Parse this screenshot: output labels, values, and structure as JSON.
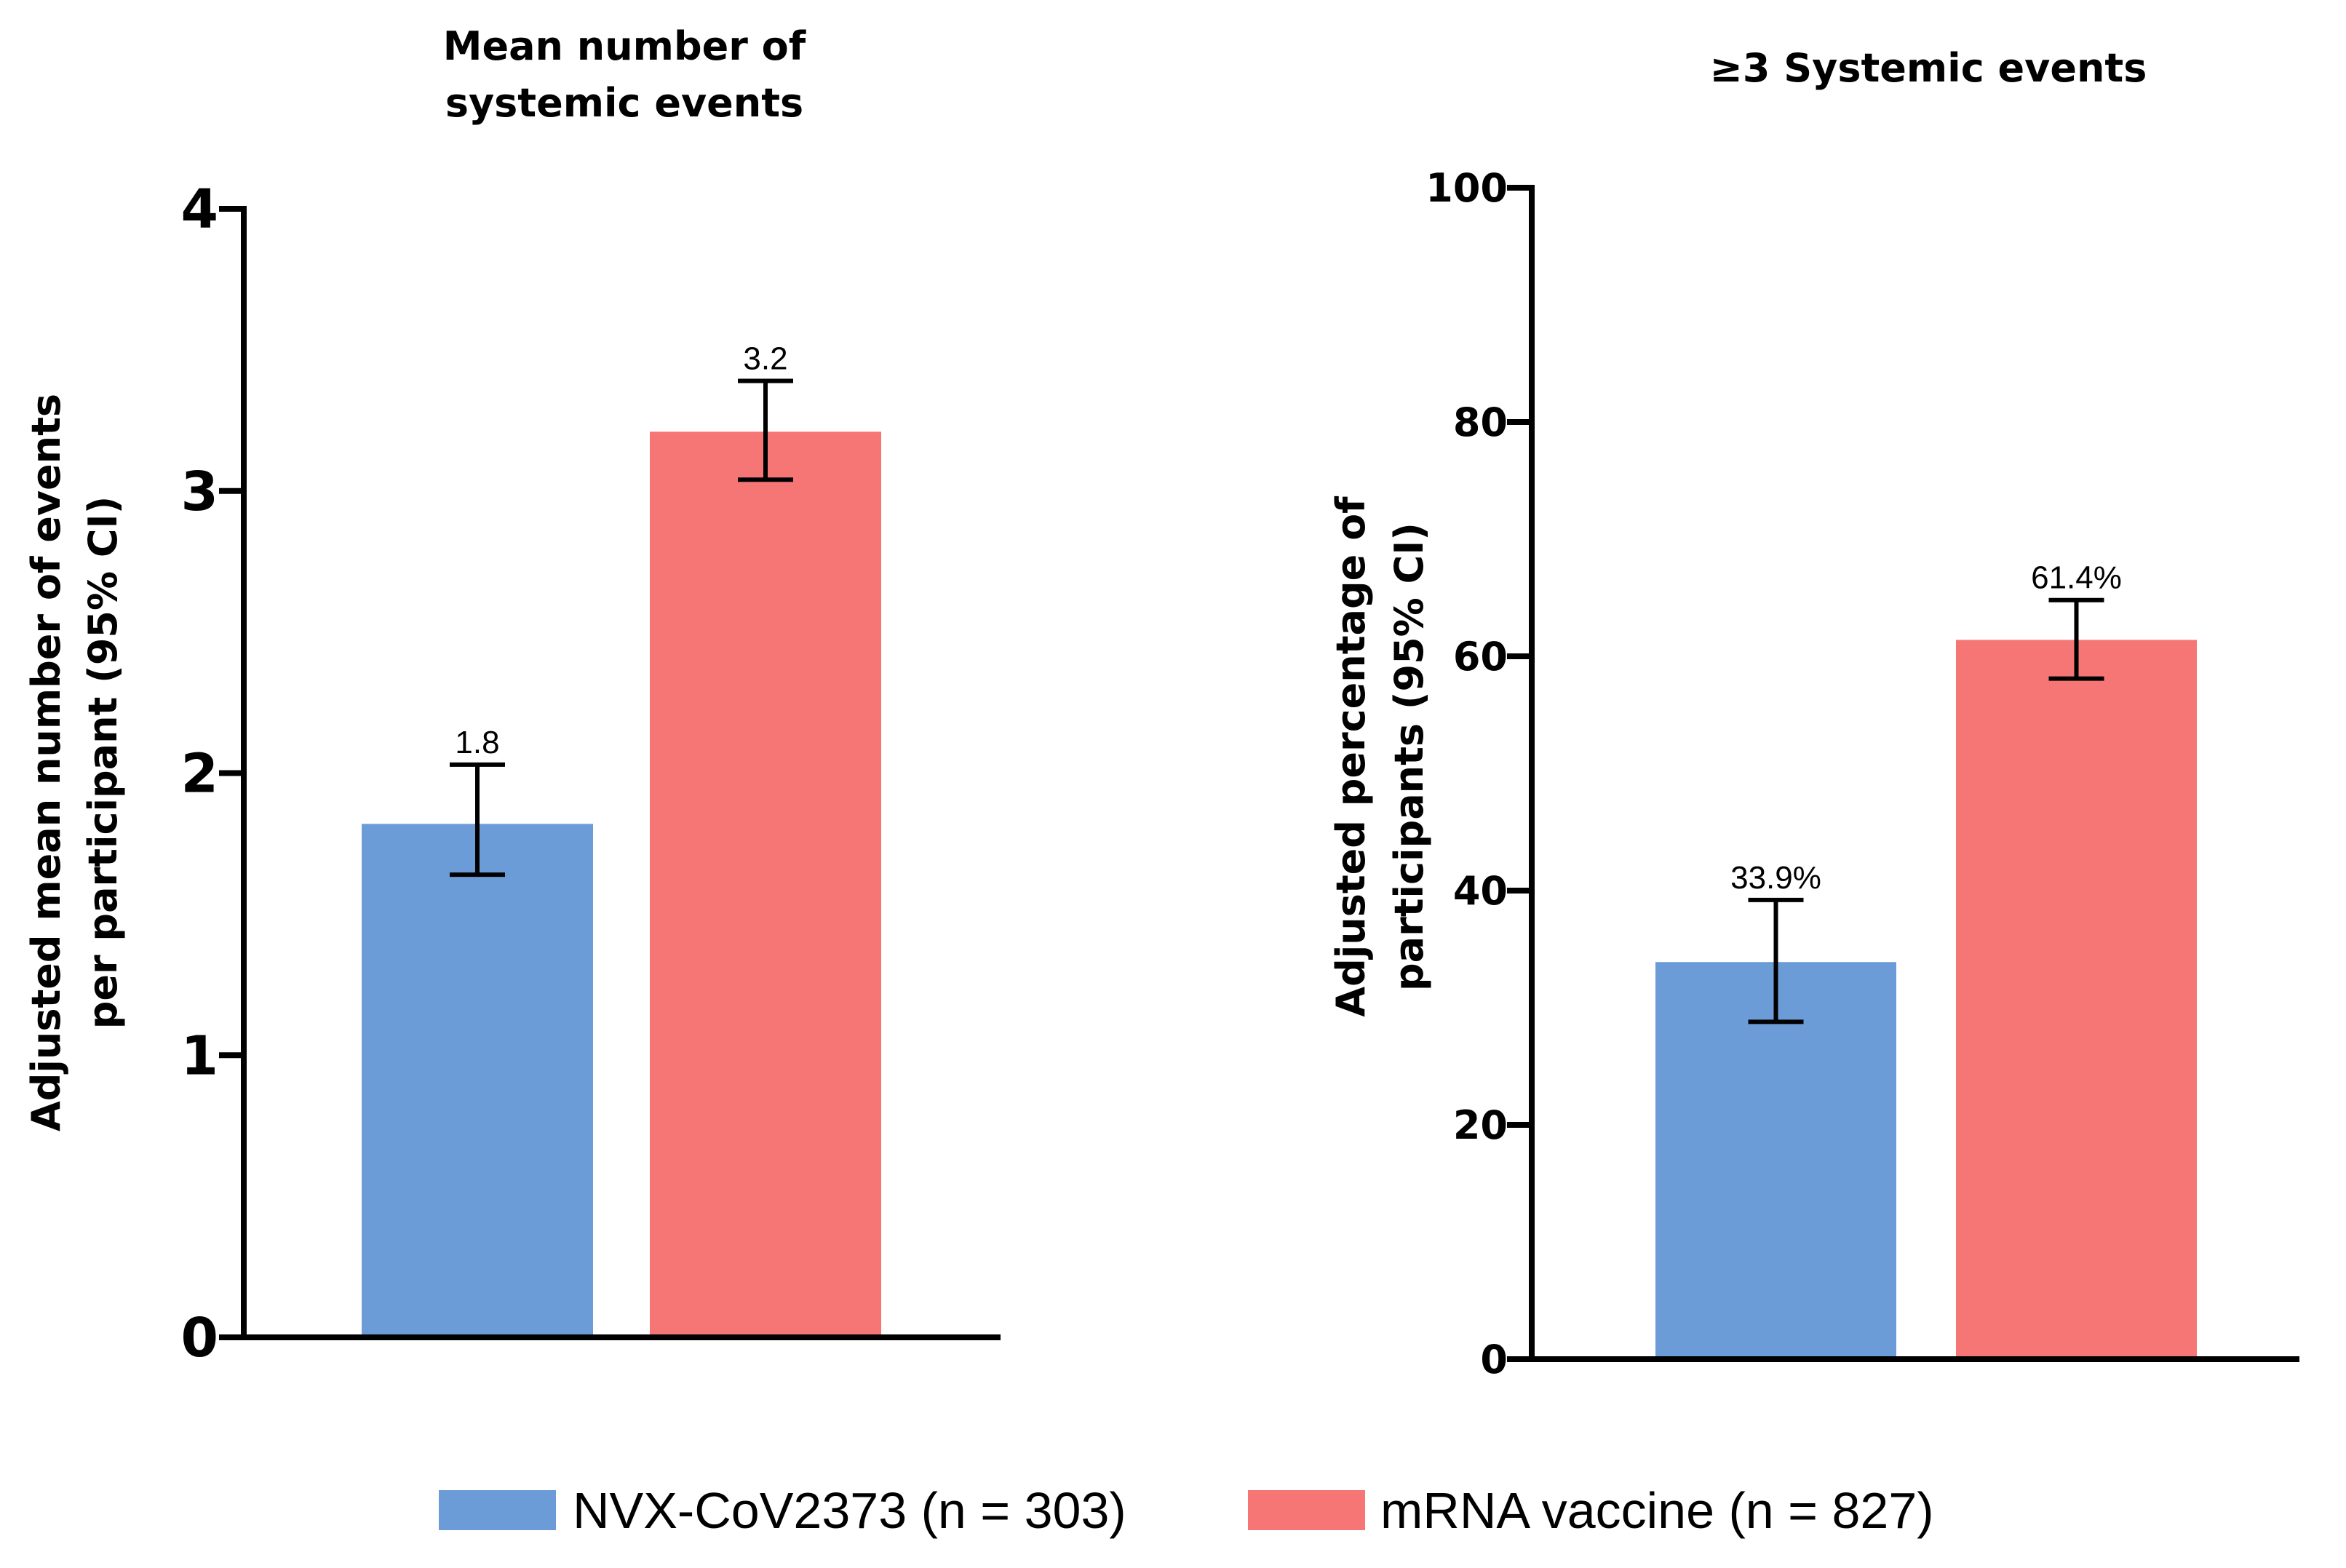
{
  "chart_data": [
    {
      "type": "bar",
      "title": [
        "Mean number of",
        "systemic events"
      ],
      "xlabel": "",
      "ylabel": [
        "Adjusted mean number of events",
        "per participant (95% CI)"
      ],
      "ylim": [
        0,
        4
      ],
      "yticks": [
        0,
        1,
        2,
        3,
        4
      ],
      "categories": [
        "NVX-CoV2373 (n = 303)",
        "mRNA vaccine (n = 827)"
      ],
      "values": [
        1.82,
        3.21
      ],
      "ci_low": [
        1.64,
        3.04
      ],
      "ci_high": [
        2.03,
        3.39
      ],
      "data_labels": [
        "1.8",
        "3.2"
      ],
      "colors": [
        "#6c9cd8",
        "#f67575"
      ],
      "grid": false
    },
    {
      "type": "bar",
      "title": [
        "≥3 Systemic events"
      ],
      "xlabel": "",
      "ylabel": [
        "Adjusted percentage of",
        "participants (95% CI)"
      ],
      "ylim": [
        0,
        100
      ],
      "yticks": [
        0,
        20,
        40,
        60,
        80,
        100
      ],
      "categories": [
        "NVX-CoV2373 (n = 303)",
        "mRNA vaccine (n = 827)"
      ],
      "values": [
        33.9,
        61.4
      ],
      "ci_low": [
        28.8,
        58.1
      ],
      "ci_high": [
        39.2,
        64.8
      ],
      "data_labels": [
        "33.9%",
        "61.4%"
      ],
      "colors": [
        "#6c9cd8",
        "#f67575"
      ],
      "grid": false
    }
  ],
  "legend": {
    "position": "bottom-center",
    "items": [
      {
        "label": "NVX-CoV2373 (n = 303)",
        "color": "#6c9cd8"
      },
      {
        "label": "mRNA vaccine (n = 827)",
        "color": "#f67575"
      }
    ]
  }
}
